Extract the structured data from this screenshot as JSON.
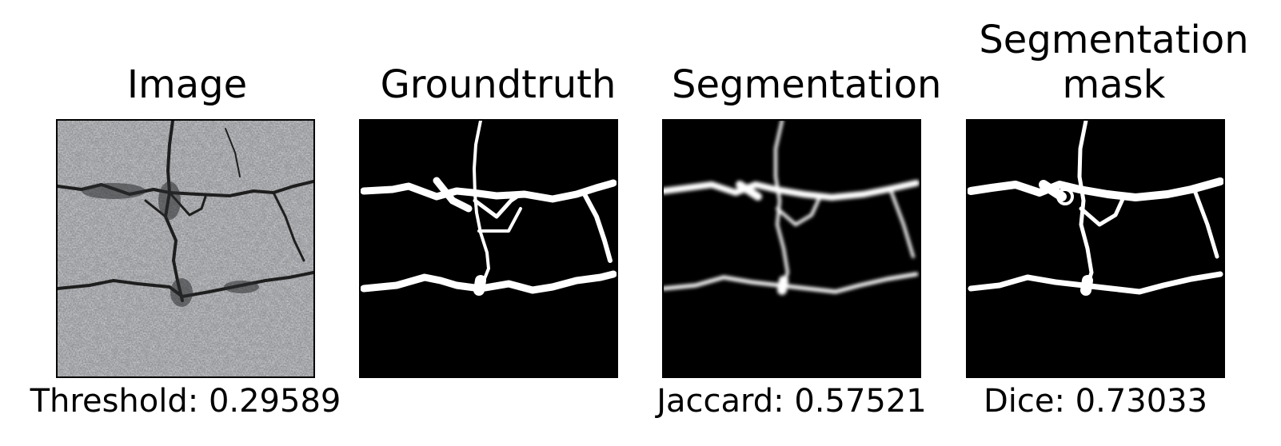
{
  "panels": [
    {
      "title": "Image",
      "caption": "Threshold: 0.29589"
    },
    {
      "title": "Groundtruth",
      "caption": ""
    },
    {
      "title": "Segmentation",
      "caption": "Jaccard: 0.57521"
    },
    {
      "title": "Segmentation mask",
      "caption": "Dice: 0.73033"
    }
  ],
  "colors": {
    "background": "#000000",
    "crack_foreground": "#ffffff",
    "asphalt": "#9a9b9e",
    "crack_dark": "#1e1e1e"
  }
}
